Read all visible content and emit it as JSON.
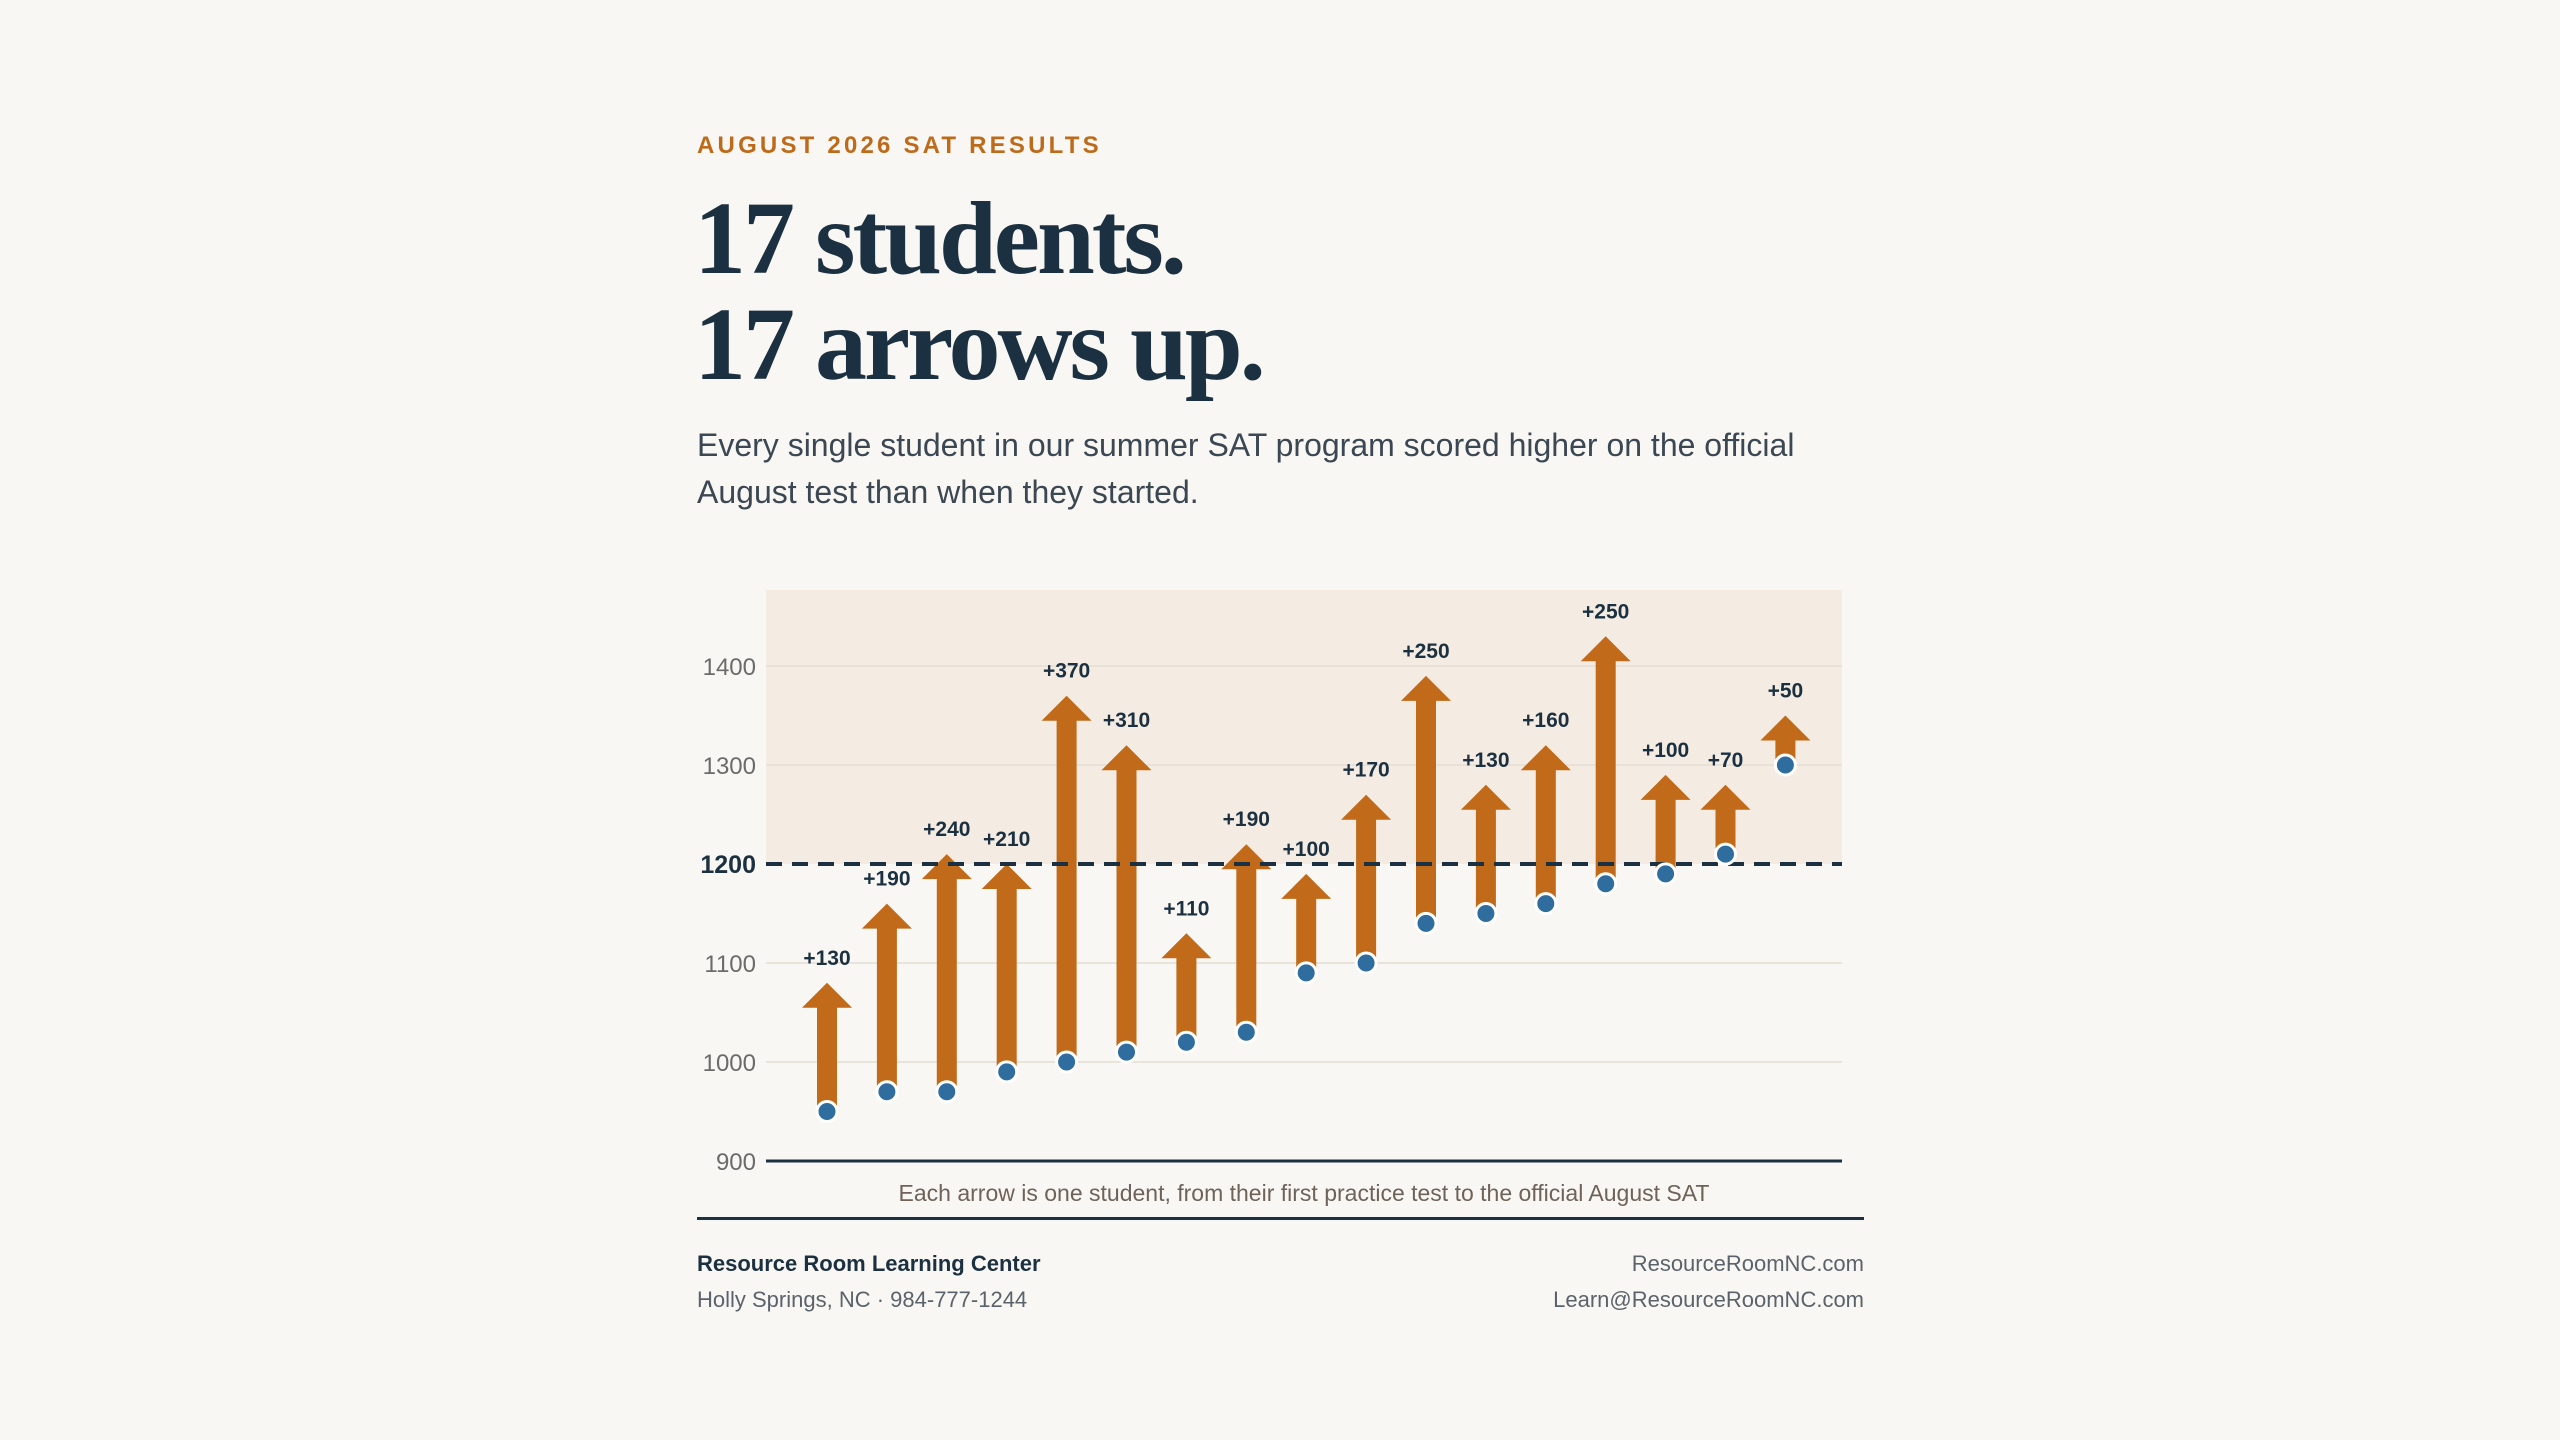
{
  "header": {
    "eyebrow": "AUGUST 2026 SAT RESULTS",
    "headline_line1": "17 students.",
    "headline_line2": "17 arrows up.",
    "lede": "Every single student in our summer SAT program scored higher on the official August test than when they started."
  },
  "chart_data": {
    "type": "arrow-range",
    "title": "",
    "xlabel": "",
    "ylabel": "",
    "ylim": [
      900,
      1480
    ],
    "yticks": [
      900,
      1000,
      1100,
      1200,
      1300,
      1400
    ],
    "reference_line": {
      "value": 1200,
      "label": "1200",
      "style": "dashed"
    },
    "grid": "horizontal",
    "caption": "Each arrow is one student, from their first practice test to the official August SAT",
    "series": [
      {
        "start": [
          950,
          970,
          970,
          990,
          1000,
          1010,
          1020,
          1030,
          1090,
          1100,
          1140,
          1150,
          1160,
          1180,
          1190,
          1210,
          1300
        ]
      },
      {
        "end": [
          1080,
          1160,
          1210,
          1200,
          1370,
          1320,
          1130,
          1220,
          1190,
          1270,
          1390,
          1280,
          1320,
          1430,
          1290,
          1280,
          1350
        ]
      }
    ],
    "labels": [
      "+130",
      "+190",
      "+240",
      "+210",
      "+370",
      "+310",
      "+110",
      "+190",
      "+100",
      "+170",
      "+250",
      "+130",
      "+160",
      "+250",
      "+100",
      "+70",
      "+50"
    ],
    "colors": {
      "arrow": "#c06a1a",
      "dot": "#2f6d9e",
      "label": "#1b3040",
      "reference": "#1b3040",
      "plot_band": "#f4ece2",
      "gridline": "#e3ddd4",
      "tick_text": "#6b6b6b"
    }
  },
  "footer": {
    "org": "Resource Room Learning Center",
    "address": "Holly Springs, NC · 984-777-1244",
    "website": "ResourceRoomNC.com",
    "email": "Learn@ResourceRoomNC.com"
  }
}
